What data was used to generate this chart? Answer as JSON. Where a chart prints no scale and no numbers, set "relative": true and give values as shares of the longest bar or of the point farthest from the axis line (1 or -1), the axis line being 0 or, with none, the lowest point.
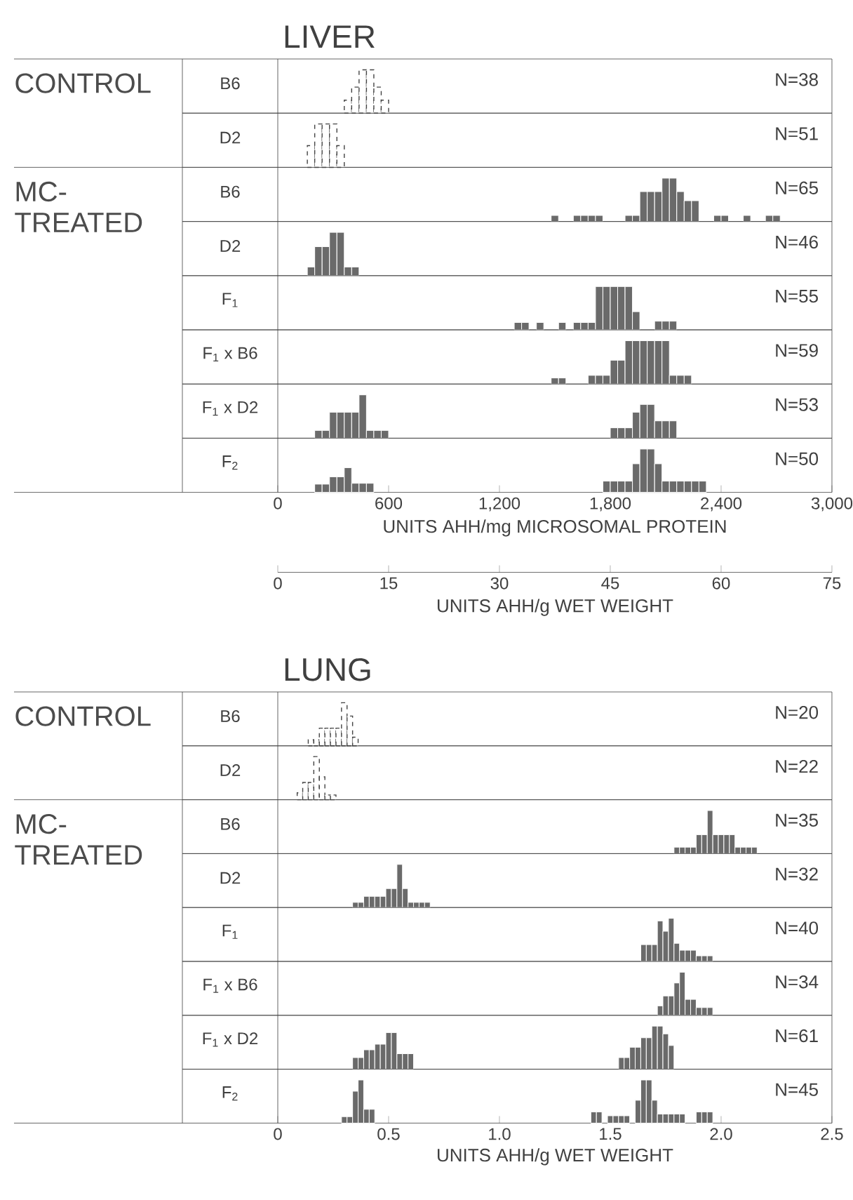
{
  "chart_data": [
    {
      "type": "bar",
      "title": "LIVER",
      "subtitle": "CONTROL",
      "ylabel": "B6",
      "annotations": [
        "N=38"
      ],
      "x": [
        380,
        420,
        460,
        500,
        540,
        580
      ],
      "values": [
        0.3,
        0.6,
        1,
        1,
        0.6,
        0.3
      ],
      "color": "#444444",
      "line_style": "dashed",
      "relative": true,
      "xlim": [
        0,
        3000
      ],
      "tick_labels": false
    },
    {
      "type": "bar",
      "ylabel": "D2",
      "annotations": [
        "N=51"
      ],
      "x": [
        180,
        220,
        260,
        300,
        340
      ],
      "values": [
        0.5,
        1,
        1,
        1,
        0.5
      ],
      "color": "#444444",
      "line_style": "dashed",
      "relative": true,
      "xlim": [
        0,
        3000
      ],
      "tick_labels": false
    },
    {
      "type": "bar",
      "subtitle": "MC-TREATED",
      "ylabel": "B6",
      "annotations": [
        "N=65"
      ],
      "x": [
        1500,
        1620,
        1660,
        1700,
        1740,
        1900,
        1940,
        1980,
        2020,
        2060,
        2100,
        2140,
        2180,
        2220,
        2260,
        2380,
        2420,
        2540,
        2660,
        2700
      ],
      "values": [
        0.14,
        0.14,
        0.14,
        0.14,
        0.14,
        0.14,
        0.14,
        0.69,
        0.69,
        0.69,
        1,
        1,
        0.69,
        0.48,
        0.48,
        0.14,
        0.14,
        0.14,
        0.14,
        0.14
      ],
      "color": "#6a6a6a",
      "relative": true,
      "xlim": [
        0,
        3000
      ],
      "tick_labels": false
    },
    {
      "type": "bar",
      "ylabel": "D2",
      "annotations": [
        "N=46"
      ],
      "x": [
        180,
        220,
        260,
        300,
        340,
        380,
        420
      ],
      "values": [
        0.2,
        0.67,
        0.67,
        1,
        1,
        0.2,
        0.2
      ],
      "color": "#6a6a6a",
      "relative": true,
      "xlim": [
        0,
        3000
      ],
      "tick_labels": false
    },
    {
      "type": "bar",
      "ylabel": "F$_{1}$",
      "annotations": [
        "N=55"
      ],
      "x": [
        1300,
        1340,
        1420,
        1540,
        1620,
        1660,
        1700,
        1740,
        1780,
        1820,
        1860,
        1900,
        1940,
        2060,
        2100,
        2140
      ],
      "values": [
        0.17,
        0.17,
        0.17,
        0.17,
        0.17,
        0.17,
        0.17,
        1,
        1,
        1,
        1,
        1,
        0.42,
        0.2,
        0.2,
        0.2
      ],
      "color": "#6a6a6a",
      "relative": true,
      "xlim": [
        0,
        3000
      ],
      "tick_labels": false
    },
    {
      "type": "bar",
      "ylabel": "F$_{1}$ x B6",
      "annotations": [
        "N=59"
      ],
      "x": [
        1500,
        1540,
        1700,
        1740,
        1780,
        1820,
        1860,
        1900,
        1940,
        1980,
        2020,
        2060,
        2100,
        2140,
        2180,
        2220
      ],
      "values": [
        0.14,
        0.14,
        0.2,
        0.2,
        0.2,
        0.55,
        0.55,
        1,
        1,
        1,
        1,
        1,
        1,
        0.2,
        0.2,
        0.2
      ],
      "color": "#6a6a6a",
      "relative": true,
      "xlim": [
        0,
        3000
      ],
      "tick_labels": false
    },
    {
      "type": "bar",
      "ylabel": "F$_{1}$ x D2",
      "annotations": [
        "N=53"
      ],
      "x": [
        220,
        260,
        300,
        340,
        380,
        420,
        460,
        500,
        540,
        580,
        1820,
        1860,
        1900,
        1940,
        1980,
        2020,
        2060,
        2100,
        2140
      ],
      "values": [
        0.18,
        0.18,
        0.6,
        0.6,
        0.6,
        0.6,
        1,
        0.18,
        0.18,
        0.18,
        0.24,
        0.24,
        0.24,
        0.6,
        0.78,
        0.78,
        0.4,
        0.4,
        0.4
      ],
      "color": "#6a6a6a",
      "relative": true,
      "xlim": [
        0,
        3000
      ],
      "tick_labels": false
    },
    {
      "type": "bar",
      "ylabel": "F$_{2}$",
      "annotations": [
        "N=50"
      ],
      "x": [
        220,
        260,
        300,
        340,
        380,
        420,
        460,
        500,
        1780,
        1820,
        1860,
        1900,
        1940,
        1980,
        2020,
        2060,
        2100,
        2140,
        2180,
        2220,
        2260,
        2300
      ],
      "values": [
        0.19,
        0.19,
        0.36,
        0.36,
        0.57,
        0.21,
        0.21,
        0.21,
        0.26,
        0.26,
        0.26,
        0.26,
        0.66,
        1,
        1,
        0.66,
        0.26,
        0.26,
        0.26,
        0.26,
        0.26,
        0.26
      ],
      "color": "#6a6a6a",
      "relative": true,
      "xlim": [
        0,
        3000
      ],
      "xticks": [
        0,
        600,
        {
          "value": 1200,
          "label": "1,200"
        },
        {
          "value": 1800,
          "label": "1,800"
        },
        {
          "value": 2400,
          "label": "2,400"
        },
        {
          "value": 3000,
          "label": "3,000"
        }
      ],
      "xlabel": "UNITS AHH/mg MICROSOMAL PROTEIN",
      "x2lim": [
        0,
        75
      ],
      "x2ticks": [
        0,
        15,
        30,
        45,
        60,
        75
      ],
      "x2label": "UNITS AHH/g  WET WEIGHT",
      "tick_labels": "x"
    },
    {
      "type": "bar",
      "title": "LUNG",
      "subtitle": "CONTROL",
      "ylabel": "B6",
      "annotations": [
        "N=20"
      ],
      "x": [
        0.15,
        0.175,
        0.2,
        0.225,
        0.25,
        0.275,
        0.3,
        0.325,
        0.35
      ],
      "values": [
        0.14,
        0.14,
        0.41,
        0.41,
        0.41,
        0.41,
        1,
        0.69,
        0.2
      ],
      "color": "#444444",
      "line_style": "dashed",
      "relative": true,
      "xlim": [
        0,
        2.5
      ],
      "tick_labels": false
    },
    {
      "type": "bar",
      "ylabel": "D2",
      "annotations": [
        "N=22"
      ],
      "x": [
        0.1,
        0.125,
        0.15,
        0.175,
        0.2,
        0.225,
        0.25
      ],
      "values": [
        0.16,
        0.4,
        0.4,
        1,
        0.53,
        0.11,
        0.11
      ],
      "color": "#444444",
      "line_style": "dashed",
      "relative": true,
      "xlim": [
        0,
        2.5
      ],
      "tick_labels": false
    },
    {
      "type": "bar",
      "subtitle": "MC-TREATED",
      "ylabel": "B6",
      "annotations": [
        "N=35"
      ],
      "x": [
        1.8,
        1.825,
        1.85,
        1.875,
        1.9,
        1.925,
        1.95,
        1.975,
        2.0,
        2.025,
        2.05,
        2.075,
        2.1,
        2.125,
        2.15
      ],
      "values": [
        0.15,
        0.15,
        0.15,
        0.15,
        0.44,
        0.44,
        1,
        0.44,
        0.44,
        0.44,
        0.44,
        0.15,
        0.15,
        0.15,
        0.15
      ],
      "color": "#6a6a6a",
      "relative": true,
      "xlim": [
        0,
        2.5
      ],
      "tick_labels": false
    },
    {
      "type": "bar",
      "ylabel": "D2",
      "annotations": [
        "N=32"
      ],
      "x": [
        0.35,
        0.375,
        0.4,
        0.425,
        0.45,
        0.475,
        0.5,
        0.525,
        0.55,
        0.575,
        0.6,
        0.625,
        0.65,
        0.675
      ],
      "values": [
        0.12,
        0.12,
        0.26,
        0.26,
        0.26,
        0.26,
        0.44,
        0.44,
        1,
        0.44,
        0.12,
        0.12,
        0.12,
        0.12
      ],
      "color": "#6a6a6a",
      "relative": true,
      "xlim": [
        0,
        2.5
      ],
      "tick_labels": false
    },
    {
      "type": "bar",
      "ylabel": "F$_{1}$",
      "annotations": [
        "N=40"
      ],
      "x": [
        1.65,
        1.675,
        1.7,
        1.725,
        1.75,
        1.775,
        1.8,
        1.825,
        1.85,
        1.875,
        1.9,
        1.925,
        1.95
      ],
      "values": [
        0.39,
        0.39,
        0.39,
        0.94,
        0.7,
        1,
        0.42,
        0.26,
        0.26,
        0.26,
        0.13,
        0.13,
        0.13
      ],
      "color": "#6a6a6a",
      "relative": true,
      "xlim": [
        0,
        2.5
      ],
      "tick_labels": false
    },
    {
      "type": "bar",
      "ylabel": "F$_{1}$ x B6",
      "annotations": [
        "N=34"
      ],
      "x": [
        1.725,
        1.75,
        1.775,
        1.8,
        1.825,
        1.85,
        1.875,
        1.9,
        1.925,
        1.95
      ],
      "values": [
        0.22,
        0.45,
        0.45,
        0.75,
        1,
        0.37,
        0.37,
        0.18,
        0.18,
        0.18
      ],
      "color": "#6a6a6a",
      "relative": true,
      "xlim": [
        0,
        2.5
      ],
      "tick_labels": false
    },
    {
      "type": "bar",
      "ylabel": "F$_{1}$ x D2",
      "annotations": [
        "N=61"
      ],
      "x": [
        0.35,
        0.375,
        0.4,
        0.425,
        0.45,
        0.475,
        0.5,
        0.525,
        0.55,
        0.575,
        0.6,
        1.55,
        1.575,
        1.6,
        1.625,
        1.65,
        1.675,
        1.7,
        1.725,
        1.75,
        1.775
      ],
      "values": [
        0.27,
        0.27,
        0.45,
        0.45,
        0.58,
        0.58,
        0.85,
        0.85,
        0.36,
        0.36,
        0.36,
        0.27,
        0.27,
        0.51,
        0.51,
        0.73,
        0.73,
        1,
        1,
        0.82,
        0.55
      ],
      "color": "#6a6a6a",
      "relative": true,
      "xlim": [
        0,
        2.5
      ],
      "tick_labels": false
    },
    {
      "type": "bar",
      "ylabel": "F$_{2}$",
      "annotations": [
        "N=45"
      ],
      "x": [
        0.3,
        0.325,
        0.35,
        0.375,
        0.4,
        0.425,
        1.425,
        1.45,
        1.5,
        1.525,
        1.55,
        1.575,
        1.625,
        1.65,
        1.675,
        1.7,
        1.725,
        1.75,
        1.775,
        1.8,
        1.825,
        1.9,
        1.925,
        1.95
      ],
      "values": [
        0.15,
        0.15,
        0.74,
        1,
        0.32,
        0.32,
        0.26,
        0.26,
        0.17,
        0.17,
        0.17,
        0.17,
        0.53,
        1,
        1,
        0.53,
        0.21,
        0.21,
        0.21,
        0.21,
        0.21,
        0.26,
        0.26,
        0.26
      ],
      "color": "#6a6a6a",
      "relative": true,
      "xlim": [
        0,
        2.5
      ],
      "xticks": [
        0,
        0.5,
        {
          "value": 1,
          "label": "1.0"
        },
        1.5,
        {
          "value": 2,
          "label": "2.0"
        },
        2.5
      ],
      "xlabel": "UNITS AHH/g  WET WEIGHT",
      "tick_labels": "x"
    }
  ]
}
